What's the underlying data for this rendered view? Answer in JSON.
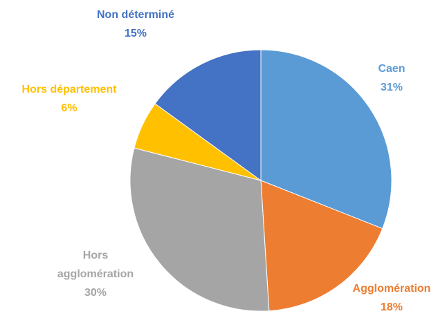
{
  "chart_data": {
    "type": "pie",
    "categories": [
      "Caen",
      "Agglomération",
      "Hors agglomération",
      "Hors département",
      "Non déterminé"
    ],
    "values": [
      31,
      18,
      30,
      6,
      15
    ],
    "value_labels": [
      "31%",
      "18%",
      "30%",
      "6%",
      "15%"
    ],
    "colors": [
      "#5b9bd5",
      "#ed7d31",
      "#a5a5a5",
      "#ffc000",
      "#4472c4"
    ]
  }
}
